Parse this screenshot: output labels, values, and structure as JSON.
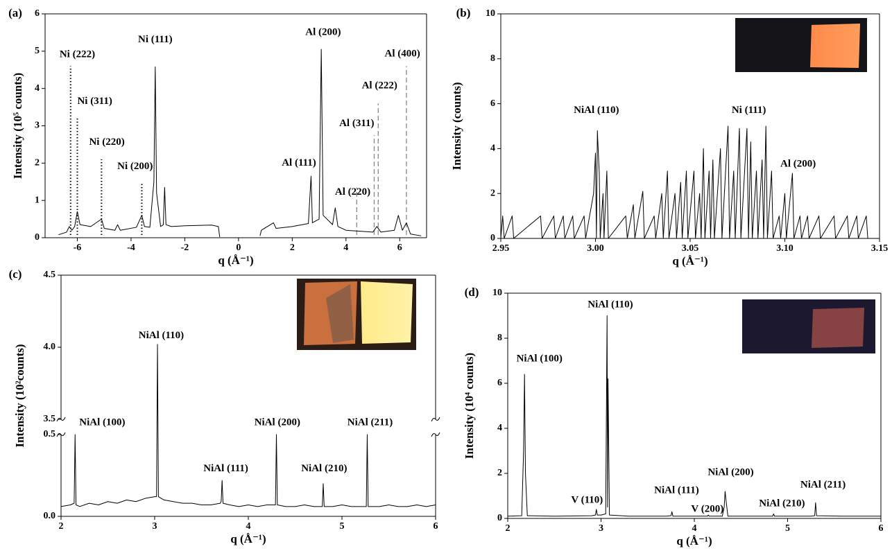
{
  "chart_data": [
    {
      "type": "line",
      "panel_label": "(a)",
      "xlabel": "q (Å⁻¹)",
      "ylabel": "Intensity (10⁵ counts)",
      "color": "#000000",
      "xlim": [
        -7.2,
        7
      ],
      "xticks": [
        -6,
        -4,
        -2,
        0,
        2,
        4,
        6
      ],
      "ylim": [
        0,
        6
      ],
      "yticks": [
        0,
        1,
        2,
        3,
        4,
        5,
        6
      ],
      "x": [
        -6.7,
        -6.4,
        -6.3,
        -6.2,
        -6.1,
        -6.0,
        -5.9,
        -5.5,
        -5.2,
        -5.1,
        -5.0,
        -4.6,
        -4.5,
        -4.4,
        -3.8,
        -3.6,
        -3.5,
        -3.3,
        -3.15,
        -3.1,
        -3.05,
        -2.9,
        -2.8,
        -2.75,
        -2.7,
        -2.5,
        -2,
        -1.5,
        -1,
        -0.75,
        -0.7,
        0,
        0.8,
        0.85,
        1.3,
        1.4,
        2,
        2.6,
        2.7,
        2.75,
        3.0,
        3.08,
        3.15,
        3.5,
        3.6,
        3.7,
        4,
        5,
        5.15,
        5.3,
        5.8,
        5.95,
        6.1,
        6.25,
        6.4,
        6.8
      ],
      "values": [
        0.08,
        0.15,
        0.3,
        0.2,
        0.3,
        0.7,
        0.35,
        0.3,
        0.45,
        0.5,
        0.25,
        0.2,
        0.35,
        0.2,
        0.28,
        0.6,
        0.3,
        0.28,
        1.5,
        4.58,
        1.2,
        0.3,
        0.35,
        1.35,
        0.35,
        0.3,
        0.32,
        0.33,
        0.34,
        0.3,
        0.02,
        null,
        0.05,
        0.2,
        0.4,
        0.25,
        0.3,
        0.38,
        1.65,
        0.4,
        0.5,
        5.05,
        0.6,
        0.35,
        0.8,
        0.3,
        0.2,
        0.15,
        0.3,
        0.15,
        0.2,
        0.6,
        0.2,
        0.4,
        0.1,
        0.05
      ],
      "reference_lines": [
        {
          "x": -6.25,
          "y": 4.6,
          "style": "dotted"
        },
        {
          "x": -6.0,
          "y": 3.2,
          "style": "dotted"
        },
        {
          "x": -5.1,
          "y": 2.1,
          "style": "dotted"
        },
        {
          "x": -3.6,
          "y": 1.45,
          "style": "dotted"
        },
        {
          "x": 4.4,
          "y": 1.35,
          "style": "dashed"
        },
        {
          "x": 5.05,
          "y": 2.75,
          "style": "dashed"
        },
        {
          "x": 5.2,
          "y": 3.6,
          "style": "dashed"
        },
        {
          "x": 6.25,
          "y": 4.6,
          "style": "dashed"
        }
      ],
      "annotations": [
        {
          "text": "Ni (222)",
          "x": -6.0,
          "y": 4.9
        },
        {
          "text": "Ni (311)",
          "x": -5.35,
          "y": 3.65
        },
        {
          "text": "Ni (220)",
          "x": -4.9,
          "y": 2.55
        },
        {
          "text": "Ni (200)",
          "x": -3.85,
          "y": 1.9
        },
        {
          "text": "Ni (111)",
          "x": -3.1,
          "y": 5.3
        },
        {
          "text": "Al (200)",
          "x": 3.15,
          "y": 5.5
        },
        {
          "text": "Al (111)",
          "x": 2.25,
          "y": 2.0
        },
        {
          "text": "Al (220)",
          "x": 4.25,
          "y": 1.22
        },
        {
          "text": "Al (311)",
          "x": 4.4,
          "y": 3.05
        },
        {
          "text": "Al (222)",
          "x": 5.25,
          "y": 4.07
        },
        {
          "text": "Al (400)",
          "x": 6.1,
          "y": 4.92
        }
      ]
    },
    {
      "type": "line",
      "panel_label": "(b)",
      "xlabel": "q (Å⁻¹)",
      "ylabel": "Intensity (counts)",
      "color": "#000000",
      "xlim": [
        2.95,
        3.15
      ],
      "xticks": [
        2.95,
        {
          "value": 3,
          "label": "3.00"
        },
        3.05,
        {
          "value": 3.1,
          "label": "3.10"
        },
        3.15
      ],
      "ylim": [
        0,
        10
      ],
      "yticks": [
        0,
        2,
        4,
        6,
        8,
        10
      ],
      "x": [
        2.95,
        2.951,
        2.9518,
        2.956,
        2.9568,
        2.971,
        2.9718,
        2.978,
        2.9788,
        2.983,
        2.9838,
        2.988,
        2.9888,
        2.994,
        2.9948,
        2.999,
        3.0,
        3.0005,
        3.001,
        3.002,
        3.0025,
        3.004,
        3.0045,
        3.006,
        3.0068,
        3.016,
        3.0168,
        3.02,
        3.0208,
        3.025,
        3.0258,
        3.031,
        3.0318,
        3.035,
        3.0358,
        3.038,
        3.0388,
        3.042,
        3.0428,
        3.045,
        3.0458,
        3.048,
        3.0488,
        3.052,
        3.0528,
        3.055,
        3.0558,
        3.057,
        3.0578,
        3.06,
        3.0608,
        3.062,
        3.0628,
        3.066,
        3.0668,
        3.07,
        3.0708,
        3.073,
        3.0738,
        3.076,
        3.0768,
        3.08,
        3.0808,
        3.082,
        3.0828,
        3.085,
        3.0858,
        3.088,
        3.0888,
        3.09,
        3.0908,
        3.093,
        3.0938,
        3.097,
        3.0978,
        3.1,
        3.1008,
        3.104,
        3.1048,
        3.108,
        3.1088,
        3.112,
        3.1128,
        3.118,
        3.1188,
        3.126,
        3.1268,
        3.133,
        3.1338,
        3.138,
        3.1388,
        3.143,
        3.1438,
        3.15
      ],
      "values": [
        0,
        1,
        0,
        1,
        0,
        1,
        0,
        1,
        0,
        1,
        0,
        1,
        0,
        1,
        0,
        2,
        3.8,
        0,
        4.8,
        2.9,
        0,
        2,
        0,
        3,
        0,
        1,
        0,
        1.5,
        0,
        2.1,
        0,
        1,
        0,
        2,
        0,
        3,
        0,
        2,
        0,
        2.5,
        0,
        3,
        0,
        3,
        0,
        2,
        0,
        4,
        0,
        3,
        0,
        3.5,
        0,
        4,
        0,
        5,
        0,
        3,
        0,
        4.9,
        0,
        4.9,
        0,
        4.3,
        0,
        3,
        0,
        3.5,
        0,
        5,
        0,
        3,
        0,
        1,
        0,
        2,
        0,
        2.9,
        0,
        1,
        0,
        1,
        0,
        1,
        0,
        1,
        0,
        1,
        0,
        1,
        0,
        1,
        0,
        0
      ],
      "annotations": [
        {
          "text": "NiAl (110)",
          "x": 3.0005,
          "y": 5.7
        },
        {
          "text": "Ni (111)",
          "x": 3.081,
          "y": 5.7
        },
        {
          "text": "Al (200)",
          "x": 3.107,
          "y": 3.3
        }
      ]
    },
    {
      "type": "line",
      "panel_label": "(c)",
      "xlabel": "q (Å⁻¹)",
      "ylabel": "Intensity (10²counts)",
      "color": "#000000",
      "xlim": [
        2,
        6
      ],
      "xticks": [
        2,
        3,
        4,
        5,
        6
      ],
      "ylim": [
        0,
        4.5
      ],
      "ybreak": [
        0.5,
        3.5
      ],
      "yticks": [
        {
          "value": 0,
          "label": "0.0"
        },
        {
          "value": 0.5,
          "label": "0.5"
        },
        {
          "value": 3.5,
          "label": "3.5"
        },
        {
          "value": 4,
          "label": "4.0"
        },
        {
          "value": 4.5,
          "label": "4.5"
        }
      ],
      "x": [
        2.0,
        2.1,
        2.14,
        2.15,
        2.16,
        2.2,
        2.3,
        2.4,
        2.5,
        2.6,
        2.7,
        2.8,
        2.9,
        3.0,
        3.02,
        3.03,
        3.04,
        3.1,
        3.2,
        3.3,
        3.4,
        3.5,
        3.6,
        3.7,
        3.71,
        3.72,
        3.73,
        3.8,
        3.9,
        4.0,
        4.1,
        4.2,
        4.29,
        4.3,
        4.31,
        4.4,
        4.5,
        4.6,
        4.7,
        4.79,
        4.8,
        4.81,
        4.9,
        5.0,
        5.1,
        5.2,
        5.26,
        5.27,
        5.28,
        5.4,
        5.5,
        5.6,
        5.7,
        5.8,
        5.9,
        6.0
      ],
      "values": [
        0.06,
        0.07,
        0.08,
        0.5,
        0.07,
        0.06,
        0.08,
        0.07,
        0.09,
        0.08,
        0.1,
        0.09,
        0.11,
        0.12,
        0.12,
        4.02,
        0.12,
        0.1,
        0.09,
        0.08,
        0.08,
        0.07,
        0.07,
        0.08,
        0.09,
        0.22,
        0.08,
        0.07,
        0.06,
        0.07,
        0.06,
        0.07,
        0.07,
        0.5,
        0.07,
        0.06,
        0.06,
        0.07,
        0.06,
        0.06,
        0.2,
        0.06,
        0.06,
        0.07,
        0.06,
        0.06,
        0.06,
        0.5,
        0.06,
        0.06,
        0.07,
        0.06,
        0.06,
        0.07,
        0.06,
        0.07
      ],
      "annotations": [
        {
          "text": "NiAl (100)",
          "x": 2.44,
          "y": 2.8
        },
        {
          "text": "NiAl (110)",
          "x": 3.07,
          "y": 4.08
        },
        {
          "text": "NiAl (111)",
          "x": 3.76,
          "y": 0.29
        },
        {
          "text": "NiAl (200)",
          "x": 4.31,
          "y": 2.8
        },
        {
          "text": "NiAl (210)",
          "x": 4.81,
          "y": 0.29
        },
        {
          "text": "NiAl (211)",
          "x": 5.3,
          "y": 2.8
        }
      ]
    },
    {
      "type": "line",
      "panel_label": "(d)",
      "xlabel": "q (Å⁻¹)",
      "ylabel": "Intensity (10⁴ counts)",
      "color": "#000000",
      "xlim": [
        2,
        6
      ],
      "xticks": [
        2,
        3,
        4,
        5,
        6
      ],
      "ylim": [
        0,
        10
      ],
      "yticks": [
        0,
        2,
        4,
        6,
        8,
        10
      ],
      "x": [
        2.0,
        2.15,
        2.17,
        2.18,
        2.19,
        2.21,
        2.5,
        2.9,
        2.94,
        2.95,
        2.96,
        3.0,
        3.05,
        3.065,
        3.07,
        3.075,
        3.09,
        3.3,
        3.7,
        3.75,
        3.76,
        3.77,
        4.1,
        4.14,
        4.15,
        4.16,
        4.3,
        4.32,
        4.33,
        4.34,
        4.36,
        4.8,
        4.84,
        4.85,
        4.86,
        5.25,
        5.29,
        5.3,
        5.31,
        5.6,
        6.0
      ],
      "values": [
        0.1,
        0.12,
        3,
        6.4,
        2,
        0.12,
        0.1,
        0.12,
        0.15,
        0.4,
        0.15,
        0.15,
        0.2,
        9.0,
        0.5,
        6.2,
        0.15,
        0.1,
        0.1,
        0.12,
        0.3,
        0.1,
        0.1,
        0.1,
        0.15,
        0.1,
        0.1,
        0.5,
        1.2,
        0.8,
        0.1,
        0.1,
        0.1,
        0.2,
        0.1,
        0.1,
        0.12,
        0.7,
        0.12,
        0.1,
        0.1
      ],
      "annotations": [
        {
          "text": "NiAl (100)",
          "x": 2.34,
          "y": 7.08
        },
        {
          "text": "NiAl (110)",
          "x": 3.1,
          "y": 9.48
        },
        {
          "text": "V (110)",
          "x": 2.85,
          "y": 0.8
        },
        {
          "text": "NiAl (111)",
          "x": 3.81,
          "y": 1.23
        },
        {
          "text": "V (200)",
          "x": 4.14,
          "y": 0.4
        },
        {
          "text": "NiAl (200)",
          "x": 4.39,
          "y": 2.03
        },
        {
          "text": "NiAl (210)",
          "x": 4.94,
          "y": 0.65
        },
        {
          "text": "NiAl (211)",
          "x": 5.38,
          "y": 1.48
        }
      ]
    }
  ]
}
